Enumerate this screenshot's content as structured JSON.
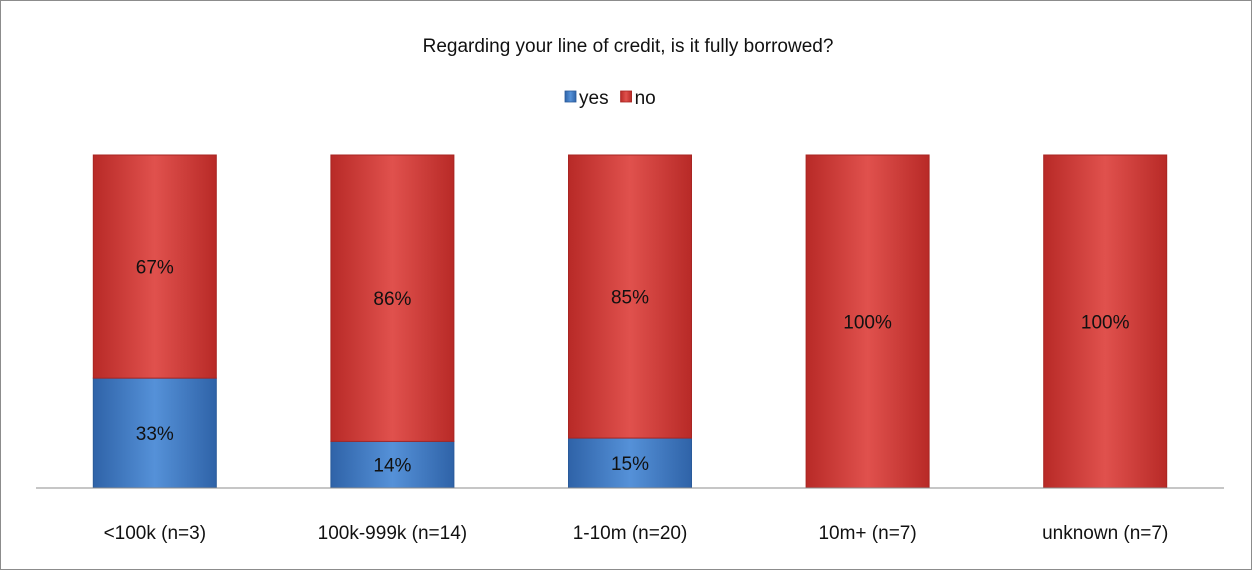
{
  "chart_data": {
    "type": "bar",
    "stacked": true,
    "percent": true,
    "title": "Regarding your line of credit, is it fully borrowed?",
    "categories": [
      "<100k (n=3)",
      "100k-999k (n=14)",
      "1-10m (n=20)",
      "10m+ (n=7)",
      "unknown (n=7)"
    ],
    "series": [
      {
        "name": "yes",
        "color": "#4f81bd",
        "values": [
          33,
          14,
          15,
          0,
          0
        ],
        "labels": [
          "33%",
          "14%",
          "15%",
          "",
          ""
        ]
      },
      {
        "name": "no",
        "color": "#d9413f",
        "values": [
          67,
          86,
          85,
          100,
          100
        ],
        "labels": [
          "67%",
          "86%",
          "85%",
          "100%",
          "100%"
        ]
      }
    ],
    "ylim": [
      0,
      100
    ],
    "legend": "top-center",
    "grid": false,
    "xlabel": "",
    "ylabel": ""
  }
}
